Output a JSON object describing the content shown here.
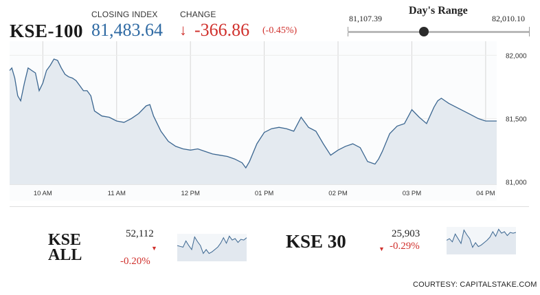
{
  "header": {
    "index_name": "KSE-100",
    "closing_label": "CLOSING INDEX",
    "closing_value": "81,483.64",
    "change_label": "CHANGE",
    "change_value": "-366.86",
    "change_pct": "(-0.45%)",
    "change_direction": "down"
  },
  "day_range": {
    "title": "Day's Range",
    "low": "81,107.39",
    "high": "82,010.10",
    "current_fraction": 0.42
  },
  "colors": {
    "index_blue": "#2f6aa3",
    "negative_red": "#d0312d",
    "line": "#3b6690",
    "area_fill": "#e4eaf0"
  },
  "chart_data": {
    "type": "area",
    "ylim": [
      80980,
      82100
    ],
    "xlim": [
      9.55,
      16.15
    ],
    "y_ticks": [
      "81,000",
      "81,500",
      "82,000"
    ],
    "y_tick_values": [
      81000,
      81500,
      82000
    ],
    "x_ticks": [
      "10 AM",
      "11 AM",
      "12 PM",
      "01 PM",
      "02 PM",
      "03 PM",
      "04 PM"
    ],
    "x_tick_values": [
      10,
      11,
      12,
      13,
      14,
      15,
      16
    ],
    "grid": true,
    "x": [
      9.55,
      9.58,
      9.62,
      9.66,
      9.7,
      9.75,
      9.8,
      9.85,
      9.9,
      9.95,
      10.0,
      10.05,
      10.1,
      10.15,
      10.2,
      10.25,
      10.3,
      10.35,
      10.4,
      10.45,
      10.5,
      10.55,
      10.6,
      10.65,
      10.7,
      10.8,
      10.9,
      11.0,
      11.1,
      11.2,
      11.3,
      11.4,
      11.45,
      11.5,
      11.6,
      11.7,
      11.8,
      11.9,
      12.0,
      12.1,
      12.2,
      12.3,
      12.4,
      12.5,
      12.6,
      12.7,
      12.75,
      12.8,
      12.9,
      13.0,
      13.1,
      13.2,
      13.3,
      13.4,
      13.5,
      13.6,
      13.7,
      13.8,
      13.9,
      14.0,
      14.1,
      14.2,
      14.3,
      14.4,
      14.5,
      14.55,
      14.6,
      14.7,
      14.8,
      14.9,
      15.0,
      15.1,
      15.2,
      15.3,
      15.35,
      15.4,
      15.45,
      15.5,
      15.6,
      15.7,
      15.8,
      15.9,
      16.0,
      16.15
    ],
    "y": [
      81880,
      81900,
      81820,
      81680,
      81640,
      81780,
      81900,
      81880,
      81860,
      81720,
      81780,
      81880,
      81920,
      81970,
      81960,
      81900,
      81850,
      81830,
      81820,
      81800,
      81760,
      81720,
      81720,
      81680,
      81560,
      81520,
      81510,
      81480,
      81470,
      81500,
      81540,
      81600,
      81610,
      81520,
      81400,
      81320,
      81280,
      81260,
      81250,
      81260,
      81240,
      81220,
      81210,
      81200,
      81180,
      81150,
      81110,
      81160,
      81300,
      81390,
      81420,
      81430,
      81420,
      81400,
      81510,
      81430,
      81400,
      81300,
      81210,
      81250,
      81280,
      81300,
      81270,
      81160,
      81140,
      81180,
      81240,
      81380,
      81440,
      81460,
      81570,
      81510,
      81460,
      81590,
      81640,
      81660,
      81640,
      81620,
      81590,
      81560,
      81530,
      81500,
      81480,
      81480
    ]
  },
  "mini": [
    {
      "name": "KSE ALL",
      "value": "52,112",
      "pct": "-0.20%",
      "arrow": "▼",
      "spark": [
        40,
        38,
        36,
        52,
        40,
        30,
        62,
        50,
        40,
        20,
        30,
        20,
        24,
        30,
        36,
        46,
        60,
        46,
        64,
        54,
        58,
        48,
        56,
        54,
        60
      ]
    },
    {
      "name": "KSE 30",
      "value": "25,903",
      "pct": "-0.29%",
      "arrow": "▼",
      "spark": [
        36,
        40,
        32,
        52,
        40,
        28,
        62,
        50,
        40,
        18,
        30,
        20,
        24,
        30,
        36,
        44,
        58,
        46,
        64,
        54,
        58,
        48,
        56,
        54,
        56
      ]
    }
  ],
  "footer": {
    "courtesy": "COURTESY: CAPITALSTAKE.COM"
  }
}
